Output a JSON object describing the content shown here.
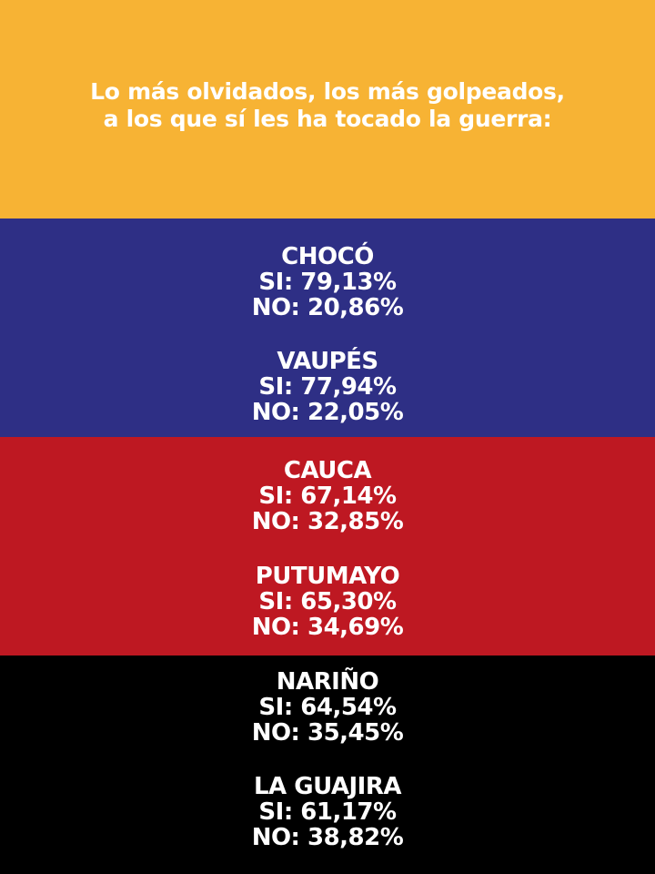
{
  "headline": {
    "line1": "Lo más olvidados, los más golpeados,",
    "line2": "a los que sí les ha tocado la guerra:"
  },
  "departments": [
    {
      "name": "CHOCÓ",
      "si": "SI: 79,13%",
      "no": "NO: 20,86%"
    },
    {
      "name": "VAUPÉS",
      "si": "SI: 77,94%",
      "no": "NO: 22,05%"
    },
    {
      "name": "CAUCA",
      "si": "SI: 67,14%",
      "no": "NO: 32,85%"
    },
    {
      "name": "PUTUMAYO",
      "si": "SI: 65,30%",
      "no": "NO: 34,69%"
    },
    {
      "name": "NARIÑO",
      "si": "SI: 64,54%",
      "no": "NO: 35,45%"
    },
    {
      "name": "LA GUAJIRA",
      "si": "SI: 61,17%",
      "no": "NO: 38,82%"
    }
  ],
  "colors": {
    "yellow": "#f7b334",
    "blue": "#2e2f85",
    "red": "#be1822",
    "black": "#000000",
    "text": "#ffffff"
  }
}
